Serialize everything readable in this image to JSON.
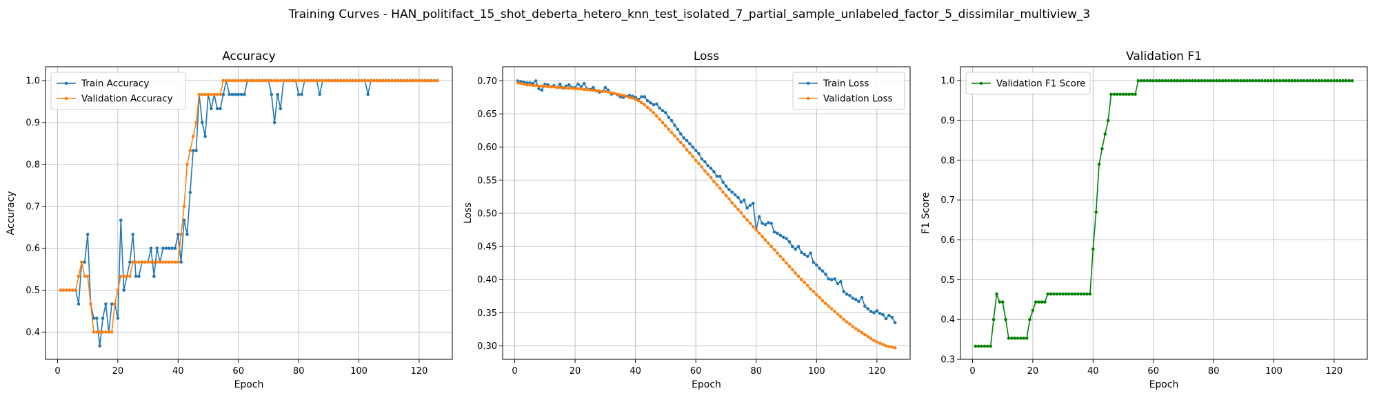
{
  "title": "Training Curves - HAN_politifact_15_shot_deberta_hetero_knn_test_isolated_7_partial_sample_unlabeled_factor_5_dissimilar_multiview_3",
  "chart_data": [
    {
      "type": "line",
      "title": "Accuracy",
      "xlabel": "Epoch",
      "ylabel": "Accuracy",
      "xlim": [
        -4,
        131
      ],
      "ylim": [
        0.335,
        1.033
      ],
      "xticks": [
        0,
        20,
        40,
        60,
        80,
        100,
        120
      ],
      "yticks": [
        0.4,
        0.5,
        0.6,
        0.7,
        0.8,
        0.9,
        1.0
      ],
      "tick_decimals": 1,
      "grid": true,
      "legend": "upper left",
      "series": [
        {
          "name": "Train Accuracy",
          "color": "#1f77b4",
          "x_start": 1,
          "values": [
            0.5,
            0.5,
            0.5,
            0.5,
            0.5,
            0.5,
            0.467,
            0.567,
            0.567,
            0.633,
            0.467,
            0.433,
            0.433,
            0.367,
            0.433,
            0.467,
            0.4,
            0.467,
            0.467,
            0.433,
            0.667,
            0.5,
            0.533,
            0.567,
            0.633,
            0.533,
            0.533,
            0.567,
            0.567,
            0.567,
            0.6,
            0.533,
            0.6,
            0.567,
            0.6,
            0.6,
            0.6,
            0.6,
            0.6,
            0.633,
            0.567,
            0.667,
            0.633,
            0.733,
            0.833,
            0.833,
            0.967,
            0.9,
            0.867,
            0.967,
            0.933,
            0.967,
            0.933,
            0.933,
            0.967,
            1.0,
            0.967,
            0.967,
            0.967,
            0.967,
            0.967,
            0.967,
            1.0,
            1.0,
            1.0,
            1.0,
            1.0,
            1.0,
            1.0,
            1.0,
            0.967,
            0.9,
            0.967,
            0.933,
            1.0,
            1.0,
            1.0,
            1.0,
            1.0,
            0.967,
            0.967,
            1.0,
            1.0,
            1.0,
            1.0,
            1.0,
            0.967,
            1.0,
            1.0,
            1.0,
            1.0,
            1.0,
            1.0,
            1.0,
            1.0,
            1.0,
            1.0,
            1.0,
            1.0,
            1.0,
            1.0,
            1.0,
            0.967,
            1.0,
            1.0,
            1.0,
            1.0,
            1.0,
            1.0,
            1.0,
            1.0,
            1.0,
            1.0,
            1.0,
            1.0,
            1.0,
            1.0,
            1.0,
            1.0,
            1.0,
            1.0,
            1.0,
            1.0,
            1.0,
            1.0,
            1.0
          ]
        },
        {
          "name": "Validation Accuracy",
          "color": "#ff7f0e",
          "x_start": 1,
          "values": [
            0.5,
            0.5,
            0.5,
            0.5,
            0.5,
            0.5,
            0.533,
            0.567,
            0.533,
            0.533,
            0.467,
            0.4,
            0.4,
            0.4,
            0.4,
            0.4,
            0.4,
            0.4,
            0.467,
            0.5,
            0.533,
            0.533,
            0.533,
            0.533,
            0.567,
            0.567,
            0.567,
            0.567,
            0.567,
            0.567,
            0.567,
            0.567,
            0.567,
            0.567,
            0.567,
            0.567,
            0.567,
            0.567,
            0.567,
            0.567,
            0.633,
            0.7,
            0.8,
            0.833,
            0.867,
            0.9,
            0.967,
            0.967,
            0.967,
            0.967,
            0.967,
            0.967,
            0.967,
            0.967,
            1.0,
            1.0,
            1.0,
            1.0,
            1.0,
            1.0,
            1.0,
            1.0,
            1.0,
            1.0,
            1.0,
            1.0,
            1.0,
            1.0,
            1.0,
            1.0,
            1.0,
            1.0,
            1.0,
            1.0,
            1.0,
            1.0,
            1.0,
            1.0,
            1.0,
            1.0,
            1.0,
            1.0,
            1.0,
            1.0,
            1.0,
            1.0,
            1.0,
            1.0,
            1.0,
            1.0,
            1.0,
            1.0,
            1.0,
            1.0,
            1.0,
            1.0,
            1.0,
            1.0,
            1.0,
            1.0,
            1.0,
            1.0,
            1.0,
            1.0,
            1.0,
            1.0,
            1.0,
            1.0,
            1.0,
            1.0,
            1.0,
            1.0,
            1.0,
            1.0,
            1.0,
            1.0,
            1.0,
            1.0,
            1.0,
            1.0,
            1.0,
            1.0,
            1.0,
            1.0,
            1.0,
            1.0
          ]
        }
      ]
    },
    {
      "type": "line",
      "title": "Loss",
      "xlabel": "Epoch",
      "ylabel": "Loss",
      "xlim": [
        -4,
        131
      ],
      "ylim": [
        0.2797,
        0.7213
      ],
      "xticks": [
        0,
        20,
        40,
        60,
        80,
        100,
        120
      ],
      "yticks": [
        0.3,
        0.35,
        0.4,
        0.45,
        0.5,
        0.55,
        0.6,
        0.65,
        0.7
      ],
      "tick_decimals": 2,
      "grid": true,
      "legend": "upper right",
      "series": [
        {
          "name": "Train Loss",
          "color": "#1f77b4",
          "x_start": 1,
          "values": [
            0.7,
            0.699,
            0.698,
            0.697,
            0.697,
            0.696,
            0.7,
            0.688,
            0.686,
            0.695,
            0.694,
            0.691,
            0.693,
            0.69,
            0.695,
            0.689,
            0.692,
            0.694,
            0.69,
            0.69,
            0.695,
            0.691,
            0.696,
            0.688,
            0.687,
            0.69,
            0.685,
            0.683,
            0.684,
            0.69,
            0.686,
            0.68,
            0.681,
            0.679,
            0.676,
            0.675,
            0.677,
            0.678,
            0.677,
            0.675,
            0.672,
            0.676,
            0.676,
            0.67,
            0.667,
            0.664,
            0.665,
            0.659,
            0.655,
            0.652,
            0.645,
            0.64,
            0.633,
            0.627,
            0.62,
            0.614,
            0.61,
            0.605,
            0.6,
            0.595,
            0.59,
            0.582,
            0.578,
            0.572,
            0.568,
            0.563,
            0.556,
            0.556,
            0.547,
            0.541,
            0.536,
            0.532,
            0.528,
            0.524,
            0.517,
            0.52,
            0.508,
            0.512,
            0.515,
            0.475,
            0.495,
            0.485,
            0.483,
            0.486,
            0.485,
            0.472,
            0.47,
            0.467,
            0.464,
            0.462,
            0.457,
            0.45,
            0.446,
            0.45,
            0.441,
            0.438,
            0.435,
            0.44,
            0.426,
            0.422,
            0.417,
            0.413,
            0.408,
            0.401,
            0.4,
            0.401,
            0.394,
            0.397,
            0.382,
            0.378,
            0.376,
            0.372,
            0.37,
            0.367,
            0.373,
            0.36,
            0.356,
            0.352,
            0.35,
            0.353,
            0.349,
            0.347,
            0.341,
            0.346,
            0.343,
            0.335
          ]
        },
        {
          "name": "Validation Loss",
          "color": "#ff7f0e",
          "x_start": 1,
          "values": [
            0.697,
            0.696,
            0.695,
            0.694,
            0.694,
            0.693,
            0.693,
            0.692,
            0.692,
            0.692,
            0.691,
            0.691,
            0.691,
            0.69,
            0.69,
            0.69,
            0.689,
            0.689,
            0.689,
            0.688,
            0.688,
            0.688,
            0.687,
            0.687,
            0.686,
            0.686,
            0.685,
            0.685,
            0.684,
            0.684,
            0.683,
            0.682,
            0.681,
            0.68,
            0.679,
            0.678,
            0.677,
            0.675,
            0.674,
            0.672,
            0.67,
            0.667,
            0.664,
            0.66,
            0.656,
            0.652,
            0.647,
            0.642,
            0.637,
            0.632,
            0.627,
            0.622,
            0.617,
            0.612,
            0.607,
            0.602,
            0.596,
            0.591,
            0.586,
            0.58,
            0.575,
            0.57,
            0.564,
            0.559,
            0.554,
            0.548,
            0.543,
            0.538,
            0.532,
            0.527,
            0.522,
            0.516,
            0.511,
            0.506,
            0.501,
            0.495,
            0.49,
            0.485,
            0.48,
            0.475,
            0.47,
            0.465,
            0.46,
            0.455,
            0.45,
            0.445,
            0.44,
            0.435,
            0.43,
            0.425,
            0.42,
            0.415,
            0.41,
            0.405,
            0.4,
            0.396,
            0.391,
            0.386,
            0.382,
            0.377,
            0.373,
            0.368,
            0.364,
            0.36,
            0.356,
            0.352,
            0.348,
            0.344,
            0.34,
            0.336,
            0.333,
            0.329,
            0.326,
            0.323,
            0.32,
            0.317,
            0.314,
            0.311,
            0.308,
            0.306,
            0.304,
            0.302,
            0.3,
            0.299,
            0.298,
            0.297
          ]
        }
      ]
    },
    {
      "type": "line",
      "title": "Validation F1",
      "xlabel": "Epoch",
      "ylabel": "F1 Score",
      "xlim": [
        -4,
        131
      ],
      "ylim": [
        0.3,
        1.035
      ],
      "xticks": [
        0,
        20,
        40,
        60,
        80,
        100,
        120
      ],
      "yticks": [
        0.3,
        0.4,
        0.5,
        0.6,
        0.7,
        0.8,
        0.9,
        1.0
      ],
      "tick_decimals": 1,
      "grid": true,
      "legend": "upper left",
      "series": [
        {
          "name": "Validation F1 Score",
          "color": "#008000",
          "x_start": 1,
          "values": [
            0.333,
            0.333,
            0.333,
            0.333,
            0.333,
            0.333,
            0.4,
            0.464,
            0.444,
            0.444,
            0.4,
            0.353,
            0.353,
            0.353,
            0.353,
            0.353,
            0.353,
            0.353,
            0.4,
            0.423,
            0.444,
            0.444,
            0.444,
            0.444,
            0.464,
            0.464,
            0.464,
            0.464,
            0.464,
            0.464,
            0.464,
            0.464,
            0.464,
            0.464,
            0.464,
            0.464,
            0.464,
            0.464,
            0.464,
            0.577,
            0.67,
            0.79,
            0.829,
            0.866,
            0.9,
            0.966,
            0.966,
            0.966,
            0.966,
            0.966,
            0.966,
            0.966,
            0.966,
            0.966,
            1.0,
            1.0,
            1.0,
            1.0,
            1.0,
            1.0,
            1.0,
            1.0,
            1.0,
            1.0,
            1.0,
            1.0,
            1.0,
            1.0,
            1.0,
            1.0,
            1.0,
            1.0,
            1.0,
            1.0,
            1.0,
            1.0,
            1.0,
            1.0,
            1.0,
            1.0,
            1.0,
            1.0,
            1.0,
            1.0,
            1.0,
            1.0,
            1.0,
            1.0,
            1.0,
            1.0,
            1.0,
            1.0,
            1.0,
            1.0,
            1.0,
            1.0,
            1.0,
            1.0,
            1.0,
            1.0,
            1.0,
            1.0,
            1.0,
            1.0,
            1.0,
            1.0,
            1.0,
            1.0,
            1.0,
            1.0,
            1.0,
            1.0,
            1.0,
            1.0,
            1.0,
            1.0,
            1.0,
            1.0,
            1.0,
            1.0,
            1.0,
            1.0,
            1.0,
            1.0,
            1.0,
            1.0
          ]
        }
      ]
    }
  ]
}
